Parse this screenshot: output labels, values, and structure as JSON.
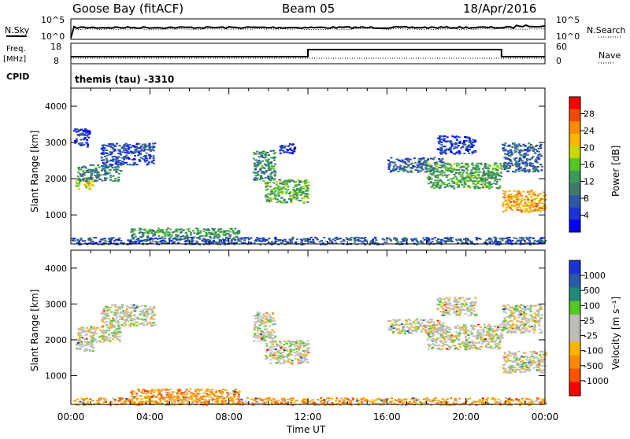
{
  "header": {
    "station": "Goose Bay (fitACF)",
    "beam": "Beam 05",
    "date": "18/Apr/2016"
  },
  "noise_panel": {
    "left_label": "N.Sky",
    "right_label": "N.Search",
    "left_ticks": [
      "10^5",
      "10^0"
    ],
    "right_ticks": [
      "10^5",
      "10^0"
    ]
  },
  "freq_panel": {
    "left_label": "Freq.",
    "left_units": "[MHz]",
    "right_label": "Nave",
    "left_ticks": [
      "18",
      "8"
    ],
    "right_ticks": [
      "60",
      "0"
    ]
  },
  "cpid": {
    "label": "CPID",
    "value": "themis (tau) -3310"
  },
  "time_axis": {
    "label": "Time UT",
    "ticks": [
      "00:00",
      "04:00",
      "08:00",
      "12:00",
      "16:00",
      "20:00",
      "00:00"
    ]
  },
  "colors": {
    "axis": "#000000",
    "ground_scatter": "#bdbdb6",
    "noise_trace": "#000000"
  },
  "chart_data": [
    {
      "type": "heatmap",
      "name": "power",
      "ylabel": "Slant Range [km]",
      "yticks": [
        "4000",
        "3000",
        "2000",
        "1000"
      ],
      "ylim": [
        200,
        4500
      ],
      "xlim_hours": [
        0,
        24
      ],
      "colorbar": {
        "label": "Power [dB]",
        "ticks": [
          "28",
          "24",
          "20",
          "16",
          "12",
          "8",
          "4"
        ],
        "colors": [
          "#ff0000",
          "#f04a00",
          "#ff8a00",
          "#ffb400",
          "#c8d800",
          "#52c820",
          "#3a9a58",
          "#3e7a6c",
          "#2c58a8",
          "#1a34d8",
          "#0000ff"
        ]
      },
      "patches": [
        {
          "t0": 0.2,
          "t1": 1.1,
          "r0": 1700,
          "r1": 2000,
          "level": 0.62
        },
        {
          "t0": 0.3,
          "t1": 2.5,
          "r0": 1950,
          "r1": 2400,
          "level": 0.32
        },
        {
          "t0": 1.5,
          "t1": 4.2,
          "r0": 2400,
          "r1": 3000,
          "level": 0.2
        },
        {
          "t0": 0.1,
          "t1": 0.9,
          "r0": 2900,
          "r1": 3400,
          "level": 0.14
        },
        {
          "t0": 3.0,
          "t1": 8.5,
          "r0": 400,
          "r1": 650,
          "level": 0.4
        },
        {
          "t0": 9.2,
          "t1": 10.3,
          "r0": 1950,
          "r1": 2800,
          "level": 0.35
        },
        {
          "t0": 9.8,
          "t1": 12.0,
          "r0": 1350,
          "r1": 2000,
          "level": 0.45
        },
        {
          "t0": 10.5,
          "t1": 11.3,
          "r0": 2700,
          "r1": 3000,
          "level": 0.12
        },
        {
          "t0": 16.0,
          "t1": 18.8,
          "r0": 2200,
          "r1": 2600,
          "level": 0.25
        },
        {
          "t0": 18.0,
          "t1": 21.8,
          "r0": 1750,
          "r1": 2450,
          "level": 0.42
        },
        {
          "t0": 18.5,
          "t1": 20.5,
          "r0": 2700,
          "r1": 3200,
          "level": 0.16
        },
        {
          "t0": 21.8,
          "t1": 24.0,
          "r0": 1100,
          "r1": 1700,
          "level": 0.72
        },
        {
          "t0": 21.8,
          "t1": 23.8,
          "r0": 2200,
          "r1": 3000,
          "level": 0.25
        },
        {
          "t0": 0.0,
          "t1": 24.0,
          "r0": 200,
          "r1": 400,
          "level": 0.22
        }
      ]
    },
    {
      "type": "heatmap",
      "name": "velocity",
      "ylabel": "Slant Range [km]",
      "yticks": [
        "4000",
        "3000",
        "2000",
        "1000"
      ],
      "ylim": [
        200,
        4500
      ],
      "xlim_hours": [
        0,
        24
      ],
      "colorbar": {
        "label": "Velocity [m s⁻¹]",
        "ticks": [
          "1000",
          "500",
          "100",
          "25",
          "-25",
          "-100",
          "-500",
          "-1000"
        ],
        "colors": [
          "#1a34d8",
          "#2c58a8",
          "#1f8a7a",
          "#52c820",
          "#bdbdb6",
          "#bdbdb6",
          "#ffb400",
          "#ff8a00",
          "#ff5000",
          "#ff0000"
        ]
      },
      "patches": [
        {
          "t0": 0.2,
          "t1": 1.1,
          "r0": 1700,
          "r1": 2000,
          "level": 0.5
        },
        {
          "t0": 0.3,
          "t1": 2.5,
          "r0": 1950,
          "r1": 2400,
          "level": 0.5
        },
        {
          "t0": 1.5,
          "t1": 4.2,
          "r0": 2400,
          "r1": 3000,
          "level": 0.5
        },
        {
          "t0": 3.0,
          "t1": 8.5,
          "r0": 400,
          "r1": 650,
          "level": 0.72
        },
        {
          "t0": 9.2,
          "t1": 10.3,
          "r0": 1950,
          "r1": 2800,
          "level": 0.5
        },
        {
          "t0": 9.8,
          "t1": 12.0,
          "r0": 1350,
          "r1": 2000,
          "level": 0.5
        },
        {
          "t0": 16.0,
          "t1": 18.8,
          "r0": 2200,
          "r1": 2600,
          "level": 0.5
        },
        {
          "t0": 18.0,
          "t1": 21.8,
          "r0": 1750,
          "r1": 2450,
          "level": 0.5
        },
        {
          "t0": 18.5,
          "t1": 20.5,
          "r0": 2700,
          "r1": 3200,
          "level": 0.5
        },
        {
          "t0": 21.8,
          "t1": 24.0,
          "r0": 1100,
          "r1": 1700,
          "level": 0.5
        },
        {
          "t0": 21.8,
          "t1": 23.8,
          "r0": 2200,
          "r1": 3000,
          "level": 0.5
        },
        {
          "t0": 0.0,
          "t1": 24.0,
          "r0": 200,
          "r1": 400,
          "level": 0.7
        }
      ]
    }
  ]
}
